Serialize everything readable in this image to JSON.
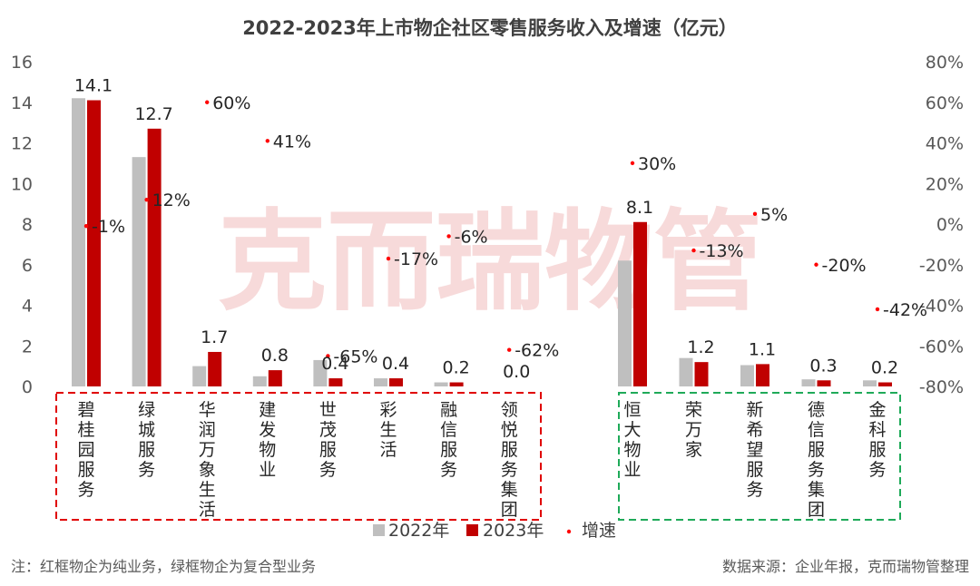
{
  "chart_data": {
    "type": "bar",
    "title": "2022-2023年上市物企社区零售服务收入及增速（亿元）",
    "categories": [
      "碧桂园服务",
      "绿城服务",
      "华润万象生活",
      "建发物业",
      "世茂服务",
      "彩生活",
      "融信服务",
      "领悦服务集团",
      "恒大物业",
      "荣万家",
      "新希望服务",
      "德信服务集团",
      "金科服务"
    ],
    "series": [
      {
        "name": "2022年",
        "color": "#bfbfbf",
        "values": [
          14.2,
          11.3,
          1.0,
          0.5,
          1.3,
          0.4,
          0.2,
          0.0,
          6.2,
          1.4,
          1.05,
          0.35,
          0.3
        ]
      },
      {
        "name": "2023年",
        "color": "#c00000",
        "values": [
          14.1,
          12.7,
          1.7,
          0.8,
          0.4,
          0.4,
          0.2,
          0.0,
          8.1,
          1.2,
          1.1,
          0.3,
          0.2
        ]
      },
      {
        "name": "增速",
        "color": "#ff0000",
        "axis": "right",
        "values": [
          -1,
          12,
          60,
          41,
          -65,
          -17,
          -6,
          -62,
          30,
          -13,
          5,
          -20,
          -42
        ]
      }
    ],
    "value_labels": [
      "14.1",
      "12.7",
      "1.7",
      "0.8",
      "0.4",
      "0.4",
      "0.2",
      "0.0",
      "8.1",
      "1.2",
      "1.1",
      "0.3",
      "0.2"
    ],
    "growth_labels": [
      "-1%",
      "12%",
      "60%",
      "41%",
      "-65%",
      "-17%",
      "-6%",
      "-62%",
      "30%",
      "-13%",
      "5%",
      "-20%",
      "-42%"
    ],
    "ylim": [
      0,
      16
    ],
    "yticks": [
      "0",
      "2",
      "4",
      "6",
      "8",
      "10",
      "12",
      "14",
      "16"
    ],
    "y2lim": [
      -80,
      80
    ],
    "y2ticks": [
      "-80%",
      "-60%",
      "-40%",
      "-20%",
      "0%",
      "20%",
      "40%",
      "60%",
      "80%"
    ],
    "legend_position": "bottom",
    "groups": [
      {
        "label": "纯业务",
        "members": [
          0,
          1,
          2,
          3,
          4,
          5,
          6,
          7
        ],
        "border_color": "#e00000"
      },
      {
        "label": "复合型业务",
        "members": [
          8,
          9,
          10,
          11,
          12
        ],
        "border_color": "#1faa59"
      }
    ]
  },
  "watermark": "克而瑞物管",
  "footnote": "注：红框物企为纯业务，绿框物企为复合型业务",
  "source": "数据来源：企业年报，克而瑞物管整理"
}
